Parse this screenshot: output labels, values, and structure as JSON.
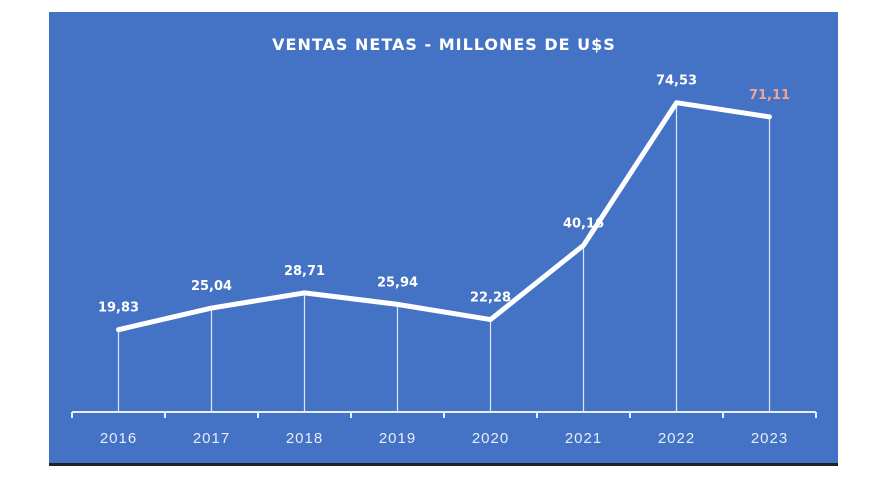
{
  "chart_data": {
    "type": "line",
    "title": "VENTAS NETAS - MILLONES DE U$S",
    "xlabel": "",
    "ylabel": "",
    "categories": [
      "2016",
      "2017",
      "2018",
      "2019",
      "2020",
      "2021",
      "2022",
      "2023"
    ],
    "values": [
      19.83,
      25.04,
      28.71,
      25.94,
      22.28,
      40.16,
      74.53,
      71.11
    ],
    "data_labels": [
      "19,83",
      "25,04",
      "28,71",
      "25,94",
      "22,28",
      "40,16",
      "74,53",
      "71,11"
    ],
    "ylim": [
      0,
      80
    ],
    "grid": false,
    "drop_lines": true,
    "colors": {
      "background": "#4472c4",
      "line": "#ffffff",
      "label": "#ffffff",
      "highlight_label": "#f2a48c"
    },
    "highlight_index": 7
  }
}
